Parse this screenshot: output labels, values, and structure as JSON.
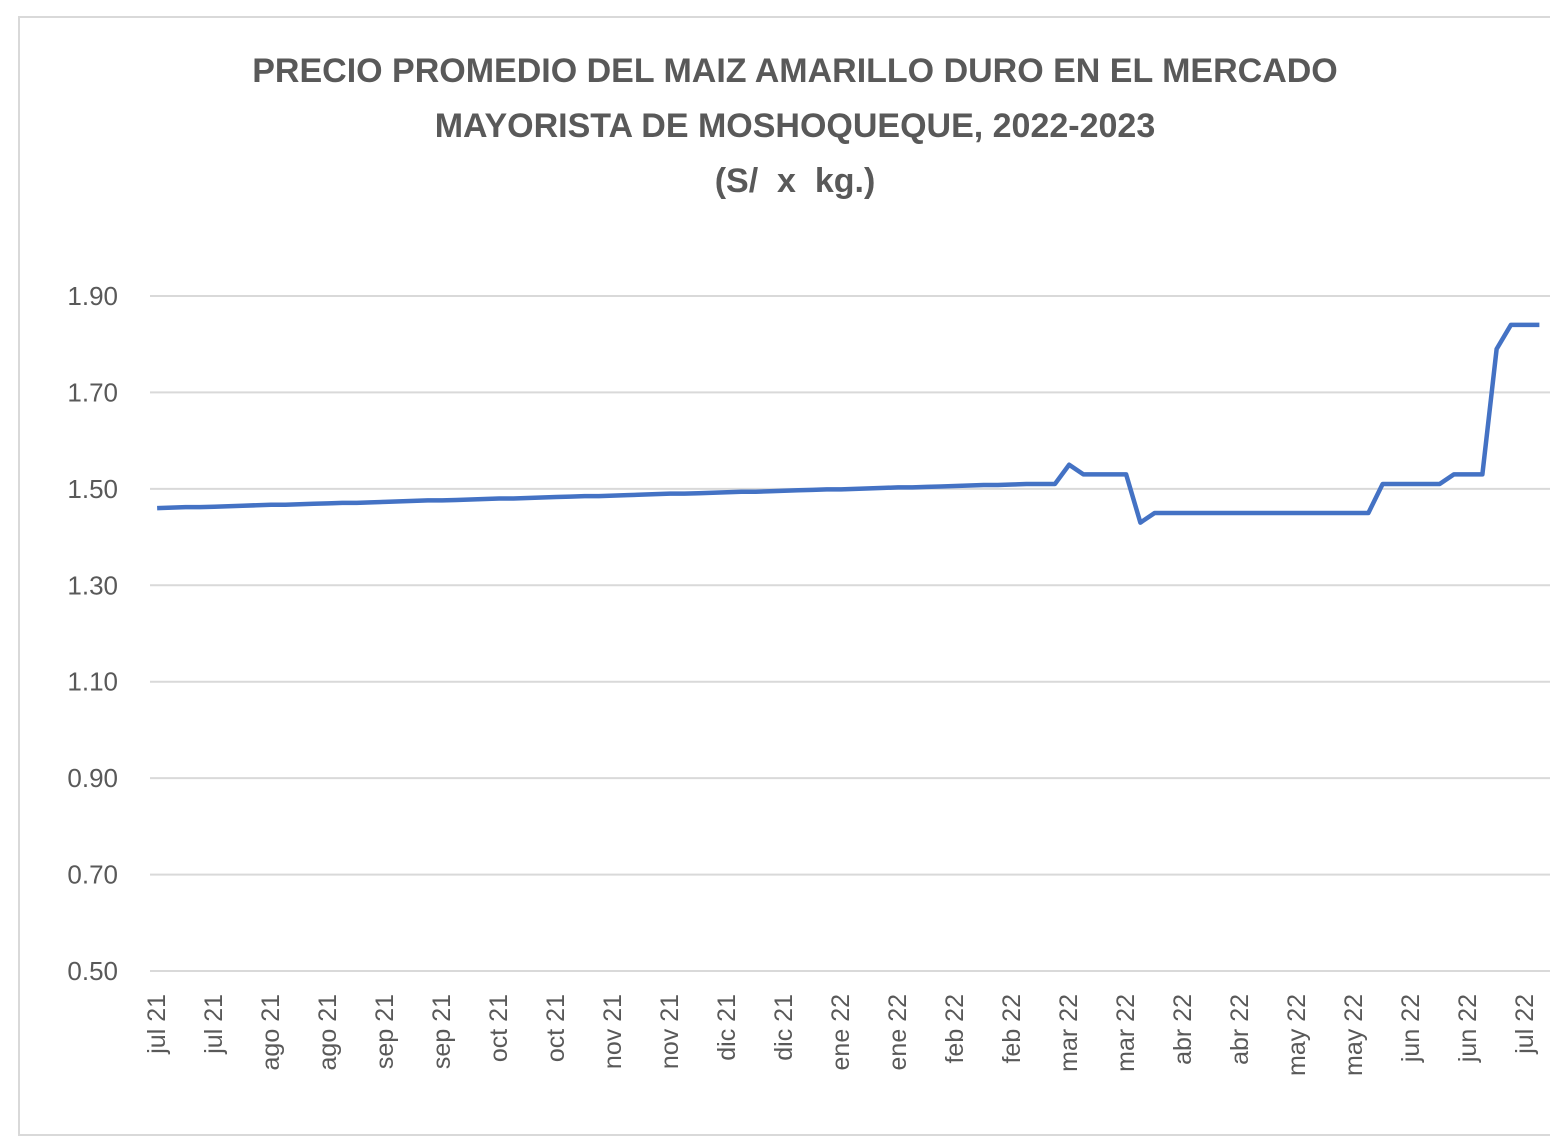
{
  "chart_data": {
    "type": "line",
    "title": "PRECIO PROMEDIO DEL MAIZ AMARILLO DURO EN EL MERCADO MAYORISTA DE MOSHOQUEQUE, 2022-2023",
    "subtitle": "(S/  x  kg.)",
    "categories": [
      "jul 21",
      null,
      null,
      null,
      "jul 21",
      null,
      null,
      null,
      "ago 21",
      null,
      null,
      null,
      "ago 21",
      null,
      null,
      null,
      "sep 21",
      null,
      null,
      null,
      "sep 21",
      null,
      null,
      null,
      "oct 21",
      null,
      null,
      null,
      "oct 21",
      null,
      null,
      null,
      "nov 21",
      null,
      null,
      null,
      "nov 21",
      null,
      null,
      null,
      "dic 21",
      null,
      null,
      null,
      "dic 21",
      null,
      null,
      null,
      "ene 22",
      null,
      null,
      null,
      "ene 22",
      null,
      null,
      null,
      "feb 22",
      null,
      null,
      null,
      "feb 22",
      null,
      null,
      null,
      "mar 22",
      null,
      null,
      null,
      "mar 22",
      null,
      null,
      null,
      "abr 22",
      null,
      null,
      null,
      "abr 22",
      null,
      null,
      null,
      "may 22",
      null,
      null,
      null,
      "may 22",
      null,
      null,
      null,
      "jun 22",
      null,
      null,
      null,
      "jun 22",
      null,
      null,
      null,
      "jul 22",
      null
    ],
    "series": [
      {
        "color": "#4472c4",
        "values": [
          1.46,
          1.461,
          1.462,
          1.462,
          1.463,
          1.464,
          1.465,
          1.466,
          1.467,
          1.467,
          1.468,
          1.469,
          1.47,
          1.471,
          1.471,
          1.472,
          1.473,
          1.474,
          1.475,
          1.476,
          1.476,
          1.477,
          1.478,
          1.479,
          1.48,
          1.48,
          1.481,
          1.482,
          1.483,
          1.484,
          1.485,
          1.485,
          1.486,
          1.487,
          1.488,
          1.489,
          1.49,
          1.49,
          1.491,
          1.492,
          1.493,
          1.494,
          1.494,
          1.495,
          1.496,
          1.497,
          1.498,
          1.499,
          1.499,
          1.5,
          1.501,
          1.502,
          1.503,
          1.503,
          1.504,
          1.505,
          1.506,
          1.507,
          1.508,
          1.508,
          1.509,
          1.51,
          1.51,
          1.51,
          1.55,
          1.53,
          1.53,
          1.53,
          1.53,
          1.43,
          1.45,
          1.45,
          1.45,
          1.45,
          1.45,
          1.45,
          1.45,
          1.45,
          1.45,
          1.45,
          1.45,
          1.45,
          1.45,
          1.45,
          1.45,
          1.45,
          1.51,
          1.51,
          1.51,
          1.51,
          1.51,
          1.53,
          1.53,
          1.53,
          1.79,
          1.84,
          1.84,
          1.84
        ]
      }
    ],
    "ylim": [
      0.5,
      1.9
    ],
    "yticks": [
      {
        "value": 0.5,
        "label": "0.50"
      },
      {
        "value": 0.7,
        "label": "0.70"
      },
      {
        "value": 0.9,
        "label": "0.90"
      },
      {
        "value": 1.1,
        "label": "1.10"
      },
      {
        "value": 1.3,
        "label": "1.30"
      },
      {
        "value": 1.5,
        "label": "1.50"
      },
      {
        "value": 1.7,
        "label": "1.70"
      },
      {
        "value": 1.9,
        "label": "1.90"
      }
    ],
    "grid": true
  }
}
